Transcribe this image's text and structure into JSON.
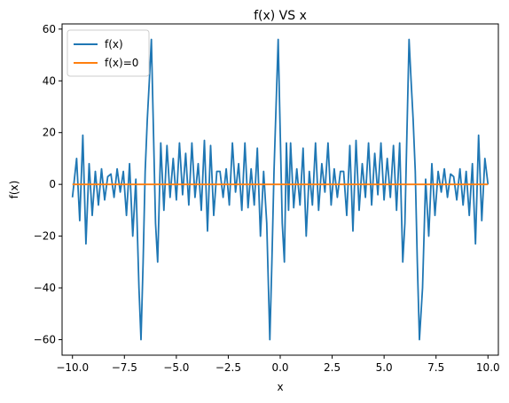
{
  "chart_data": {
    "type": "line",
    "title": "f(x) VS x",
    "xlabel": "x",
    "ylabel": "f(x)",
    "xlim": [
      -10.5,
      10.5
    ],
    "ylim": [
      -66,
      62
    ],
    "xticks": [
      -10.0,
      -7.5,
      -5.0,
      -2.5,
      0.0,
      2.5,
      5.0,
      7.5,
      10.0
    ],
    "xtick_labels": [
      "−10.0",
      "−7.5",
      "−5.0",
      "−2.5",
      "0.0",
      "2.5",
      "5.0",
      "7.5",
      "10.0"
    ],
    "yticks": [
      -60,
      -40,
      -20,
      0,
      20,
      40,
      60
    ],
    "ytick_labels": [
      "−60",
      "−40",
      "−20",
      "0",
      "20",
      "40",
      "60"
    ],
    "grid": false,
    "legend_position": "top-left",
    "series": [
      {
        "name": "f(x)",
        "color": "#1f77b4",
        "x": [
          -10.0,
          -9.8,
          -9.65,
          -9.5,
          -9.35,
          -9.2,
          -9.05,
          -8.9,
          -8.75,
          -8.6,
          -8.45,
          -8.3,
          -8.15,
          -8.0,
          -7.85,
          -7.7,
          -7.55,
          -7.4,
          -7.25,
          -7.1,
          -6.95,
          -6.8,
          -6.7,
          -6.6,
          -6.5,
          -6.4,
          -6.3,
          -6.2,
          -6.1,
          -6.0,
          -5.9,
          -5.75,
          -5.6,
          -5.45,
          -5.3,
          -5.15,
          -5.0,
          -4.85,
          -4.7,
          -4.55,
          -4.4,
          -4.25,
          -4.1,
          -3.95,
          -3.8,
          -3.65,
          -3.5,
          -3.35,
          -3.2,
          -3.05,
          -2.9,
          -2.75,
          -2.6,
          -2.45,
          -2.3,
          -2.15,
          -2.0,
          -1.85,
          -1.7,
          -1.55,
          -1.4,
          -1.25,
          -1.1,
          -0.95,
          -0.8,
          -0.65,
          -0.5,
          -0.4,
          -0.3,
          -0.2,
          -0.1,
          0.0,
          0.1,
          0.2,
          0.3,
          0.4,
          0.5,
          0.65,
          0.8,
          0.95,
          1.1,
          1.25,
          1.4,
          1.55,
          1.7,
          1.85,
          2.0,
          2.15,
          2.3,
          2.45,
          2.6,
          2.75,
          2.9,
          3.05,
          3.2,
          3.35,
          3.5,
          3.65,
          3.8,
          3.95,
          4.1,
          4.25,
          4.4,
          4.55,
          4.7,
          4.85,
          5.0,
          5.15,
          5.3,
          5.45,
          5.6,
          5.75,
          5.9,
          6.0,
          6.1,
          6.2,
          6.3,
          6.4,
          6.5,
          6.6,
          6.7,
          6.85,
          7.0,
          7.15,
          7.3,
          7.45,
          7.6,
          7.75,
          7.9,
          8.05,
          8.2,
          8.35,
          8.5,
          8.65,
          8.8,
          8.95,
          9.1,
          9.25,
          9.4,
          9.55,
          9.7,
          9.85,
          10.0
        ],
        "y": [
          -5,
          10,
          -14,
          19,
          -23,
          8,
          -12,
          5,
          -8,
          6,
          -6,
          3,
          4,
          -5,
          6,
          -3,
          5,
          -12,
          8,
          -20,
          2,
          -40,
          -60,
          -30,
          5,
          25,
          40,
          56,
          20,
          -15,
          -30,
          16,
          -10,
          15,
          -5,
          10,
          -6,
          16,
          -4,
          12,
          -8,
          16,
          -5,
          8,
          -10,
          17,
          -18,
          15,
          -12,
          5,
          5,
          -5,
          6,
          -8,
          16,
          -3,
          8,
          -10,
          16,
          -9,
          6,
          -8,
          14,
          -20,
          5,
          -15,
          -60,
          -30,
          5,
          30,
          56,
          20,
          -15,
          -30,
          16,
          -10,
          16,
          -9,
          6,
          -8,
          14,
          -20,
          5,
          -8,
          16,
          -10,
          8,
          -3,
          16,
          -8,
          6,
          -5,
          5,
          5,
          -12,
          15,
          -18,
          17,
          -10,
          8,
          -5,
          16,
          -8,
          12,
          -4,
          16,
          -6,
          10,
          -5,
          15,
          -10,
          16,
          -30,
          -15,
          20,
          56,
          40,
          25,
          5,
          -30,
          -60,
          -40,
          2,
          -20,
          8,
          -12,
          5,
          -3,
          6,
          -5,
          4,
          3,
          -6,
          6,
          -8,
          5,
          -12,
          8,
          -23,
          19,
          -14,
          10,
          0
        ]
      },
      {
        "name": "f(x)=0",
        "color": "#ff7f0e",
        "x": [
          -10.0,
          10.0
        ],
        "y": [
          0,
          0
        ]
      }
    ]
  }
}
